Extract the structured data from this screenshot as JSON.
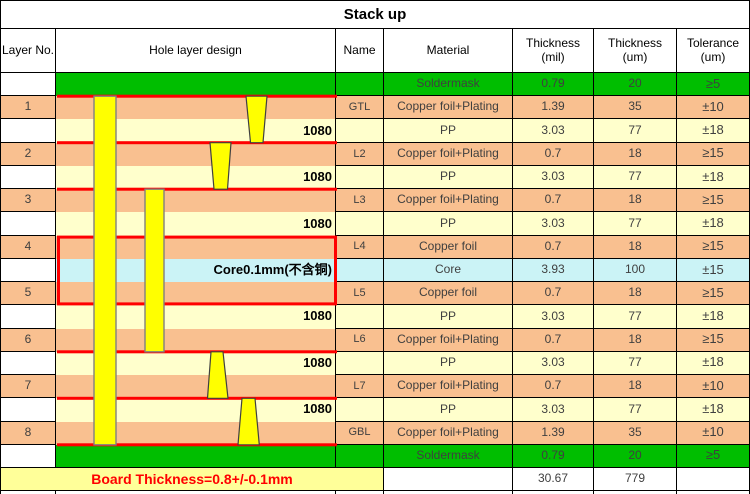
{
  "title": "Stack up",
  "header": {
    "columns": [
      "Layer No.",
      "Hole layer design",
      "Name",
      "Material",
      "Thickness\n(mil)",
      "Thickness\n(um)",
      "Tolerance\n(um)"
    ]
  },
  "rows": [
    {
      "layer_no": "",
      "hole_label": "",
      "name": "",
      "material": "Soldermask",
      "thickness_mil": "0.79",
      "thickness_um": "20",
      "tolerance": "≥5",
      "row_type": "soldermask"
    },
    {
      "layer_no": "1",
      "hole_label": "",
      "name": "GTL",
      "material": "Copper foil+Plating",
      "thickness_mil": "1.39",
      "thickness_um": "35",
      "tolerance": "±10",
      "row_type": "copper"
    },
    {
      "layer_no": "",
      "hole_label": "1080",
      "name": "",
      "material": "PP",
      "thickness_mil": "3.03",
      "thickness_um": "77",
      "tolerance": "±18",
      "row_type": "pp"
    },
    {
      "layer_no": "2",
      "hole_label": "",
      "name": "L2",
      "material": "Copper foil+Plating",
      "thickness_mil": "0.7",
      "thickness_um": "18",
      "tolerance": "≥15",
      "row_type": "copper"
    },
    {
      "layer_no": "",
      "hole_label": "1080",
      "name": "",
      "material": "PP",
      "thickness_mil": "3.03",
      "thickness_um": "77",
      "tolerance": "±18",
      "row_type": "pp"
    },
    {
      "layer_no": "3",
      "hole_label": "",
      "name": "L3",
      "material": "Copper foil+Plating",
      "thickness_mil": "0.7",
      "thickness_um": "18",
      "tolerance": "≥15",
      "row_type": "copper"
    },
    {
      "layer_no": "",
      "hole_label": "1080",
      "name": "",
      "material": "PP",
      "thickness_mil": "3.03",
      "thickness_um": "77",
      "tolerance": "±18",
      "row_type": "pp"
    },
    {
      "layer_no": "4",
      "hole_label": "",
      "name": "L4",
      "material": "Copper foil",
      "thickness_mil": "0.7",
      "thickness_um": "18",
      "tolerance": "≥15",
      "row_type": "copper"
    },
    {
      "layer_no": "",
      "hole_label": "Core0.1mm(不含铜)",
      "name": "",
      "material": "Core",
      "thickness_mil": "3.93",
      "thickness_um": "100",
      "tolerance": "±15",
      "row_type": "core"
    },
    {
      "layer_no": "5",
      "hole_label": "",
      "name": "L5",
      "material": "Copper foil",
      "thickness_mil": "0.7",
      "thickness_um": "18",
      "tolerance": "≥15",
      "row_type": "copper"
    },
    {
      "layer_no": "",
      "hole_label": "1080",
      "name": "",
      "material": "PP",
      "thickness_mil": "3.03",
      "thickness_um": "77",
      "tolerance": "±18",
      "row_type": "pp"
    },
    {
      "layer_no": "6",
      "hole_label": "",
      "name": "L6",
      "material": "Copper foil+Plating",
      "thickness_mil": "0.7",
      "thickness_um": "18",
      "tolerance": "≥15",
      "row_type": "copper"
    },
    {
      "layer_no": "",
      "hole_label": "1080",
      "name": "",
      "material": "PP",
      "thickness_mil": "3.03",
      "thickness_um": "77",
      "tolerance": "±18",
      "row_type": "pp"
    },
    {
      "layer_no": "7",
      "hole_label": "",
      "name": "L7",
      "material": "Copper foil+Plating",
      "thickness_mil": "0.7",
      "thickness_um": "18",
      "tolerance": "±10",
      "row_type": "copper"
    },
    {
      "layer_no": "",
      "hole_label": "1080",
      "name": "",
      "material": "PP",
      "thickness_mil": "3.03",
      "thickness_um": "77",
      "tolerance": "±18",
      "row_type": "pp"
    },
    {
      "layer_no": "8",
      "hole_label": "",
      "name": "GBL",
      "material": "Copper foil+Plating",
      "thickness_mil": "1.39",
      "thickness_um": "35",
      "tolerance": "±10",
      "row_type": "copper"
    },
    {
      "layer_no": "",
      "hole_label": "",
      "name": "",
      "material": "Soldermask",
      "thickness_mil": "0.79",
      "thickness_um": "20",
      "tolerance": "≥5",
      "row_type": "soldermask"
    }
  ],
  "footer": {
    "label": "Board Thickness=0.8+/-0.1mm",
    "thickness_mil": "30.67",
    "thickness_um": "779"
  },
  "hole_design": {
    "vias": [
      {
        "name": "through-hole-via",
        "type": "through",
        "spans": "L1-L8"
      },
      {
        "name": "buried-via",
        "type": "buried",
        "spans": "L3-L6"
      },
      {
        "name": "blind-via-top-1",
        "type": "blind",
        "spans": "L1-L2"
      },
      {
        "name": "blind-via-top-2",
        "type": "blind",
        "spans": "L2-L3"
      },
      {
        "name": "blind-via-bottom-1",
        "type": "blind",
        "spans": "L6-L7"
      },
      {
        "name": "blind-via-bottom-2",
        "type": "blind",
        "spans": "L7-L8"
      }
    ]
  },
  "colors": {
    "soldermask_green": "#00BE00",
    "copper_salmon": "#F9C090",
    "pp_cream": "#FFFFCC",
    "core_cyan": "#CBF3F6",
    "footer_yellow": "#FFFF99",
    "accent_red": "#FF0000",
    "via_yellow": "#FFFF00",
    "text_dark": "#3F3F3F"
  }
}
